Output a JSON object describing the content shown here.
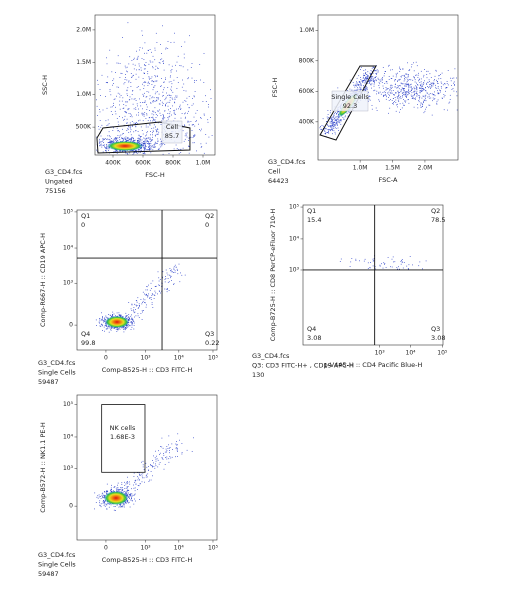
{
  "chart_data": [
    {
      "type": "scatter",
      "xlabel": "FSC-H",
      "ylabel": "SSC-H",
      "xscale": "linear",
      "yscale": "linear",
      "xlim": [
        280000,
        1080000
      ],
      "ylim": [
        70000,
        2230000
      ],
      "xticks": [
        {
          "value": 400000,
          "label": "400K"
        },
        {
          "value": 600000,
          "label": "600K"
        },
        {
          "value": 800000,
          "label": "800K"
        },
        {
          "value": 1000000,
          "label": "1.0M"
        }
      ],
      "yticks": [
        {
          "value": 500000,
          "label": "500K"
        },
        {
          "value": 1000000,
          "label": "1.0M"
        },
        {
          "value": 1500000,
          "label": "1.5M"
        },
        {
          "value": 2000000,
          "label": "2.0M"
        }
      ],
      "gates": [
        {
          "name": "Cell",
          "value": 85.7,
          "x": [
            293000,
            333000,
            713000,
            913000,
            913000,
            300000
          ],
          "y": [
            332000,
            487000,
            579000,
            487000,
            147000,
            101000
          ]
        }
      ],
      "sample": "G3_CD4.fcs",
      "population": "Ungated",
      "count": 75156
    },
    {
      "type": "scatter",
      "xlabel": "FSC-A",
      "ylabel": "FSC-H",
      "xscale": "linear",
      "yscale": "linear",
      "xlim": [
        350000,
        2510000
      ],
      "ylim": [
        150000,
        1100000
      ],
      "xticks": [
        {
          "value": 1000000,
          "label": "1.0M"
        },
        {
          "value": 1500000,
          "label": "1.5M"
        },
        {
          "value": 2000000,
          "label": "2.0M"
        }
      ],
      "yticks": [
        {
          "value": 400000,
          "label": "400K"
        },
        {
          "value": 600000,
          "label": "600K"
        },
        {
          "value": 800000,
          "label": "800K"
        },
        {
          "value": 1000000,
          "label": "1.0M"
        }
      ],
      "gates": [
        {
          "name": "Single Cells",
          "value": 92.3,
          "x": [
            381000,
            998000,
            1245000,
            628000
          ],
          "y": [
            314000,
            766000,
            766000,
            281000
          ]
        }
      ],
      "sample": "G3_CD4.fcs",
      "population": "Cell",
      "count": 64423
    },
    {
      "type": "scatter",
      "xlabel": "Comp-B525-H :: CD3 FITC-H",
      "ylabel": "Comp-R667-H :: CD19 APC-H",
      "xscale": "biexponential",
      "yscale": "biexponential",
      "xlim": [
        -450,
        131000
      ],
      "ylim": [
        -290,
        113000
      ],
      "xticks": [
        0,
        {
          "value": 1000,
          "label": "10³"
        },
        {
          "value": 10000,
          "label": "10⁴"
        },
        {
          "value": 100000,
          "label": "10⁵"
        }
      ],
      "yticks": [
        0,
        {
          "value": 1000,
          "label": "10³"
        },
        {
          "value": 10000,
          "label": "10⁴"
        },
        {
          "value": 100000,
          "label": "10⁵"
        }
      ],
      "quadrants": {
        "x": 3180,
        "y": 5240,
        "names": [
          "Q1",
          "Q2",
          "Q3",
          "Q4"
        ],
        "values": [
          0,
          0,
          0.22,
          99.8
        ]
      },
      "sample": "G3_CD4.fcs",
      "population": "Single Cells",
      "count": 59487
    },
    {
      "type": "scatter",
      "xlabel": "p-V445-H :: CD4 Pacific Blue-H",
      "ylabel": "Comp-B725-H :: CD8 PerCP-eFluor 710-H",
      "xscale": "biexponential",
      "yscale": "biexponential",
      "xlim": [
        -1260,
        105000
      ],
      "ylim": [
        -1090,
        116000
      ],
      "xticks": [
        {
          "value": 1000,
          "label": "10³"
        },
        {
          "value": 10000,
          "label": "10⁴"
        },
        {
          "value": 100000,
          "label": "10⁵"
        }
      ],
      "yticks": [
        {
          "value": 1000,
          "label": "10³"
        },
        {
          "value": 10000,
          "label": "10⁴"
        },
        {
          "value": 100000,
          "label": "10⁵"
        }
      ],
      "quadrants": {
        "x": 675,
        "y": 1000,
        "names": [
          "Q1",
          "Q2",
          "Q3",
          "Q4"
        ],
        "values": [
          15.4,
          78.5,
          3.08,
          3.08
        ]
      },
      "sample": "G3_CD4.fcs",
      "population": "Q3: CD3 FITC-H+ , CD19 APC-H",
      "count": 130
    },
    {
      "type": "scatter",
      "xlabel": "Comp-B525-H :: CD3 FITC-H",
      "ylabel": "Comp-B572-H :: NK1.1 PE-H",
      "xscale": "biexponential",
      "yscale": "biexponential",
      "xlim": [
        -450,
        131000
      ],
      "ylim": [
        -750,
        197000
      ],
      "xticks": [
        0,
        {
          "value": 1000,
          "label": "10³"
        },
        {
          "value": 10000,
          "label": "10⁴"
        },
        {
          "value": 100000,
          "label": "10⁵"
        }
      ],
      "yticks": [
        0,
        {
          "value": 1000,
          "label": "10³"
        },
        {
          "value": 10000,
          "label": "10⁴"
        },
        {
          "value": 100000,
          "label": "10⁵"
        }
      ],
      "gates": [
        {
          "name": "NK cells",
          "value": 0.00168,
          "value_label": "1.68E-3",
          "x": [
            -25,
            960
          ],
          "y": [
            750,
            100000
          ]
        }
      ],
      "sample": "G3_CD4.fcs",
      "population": "Single Cells",
      "count": 59487
    }
  ]
}
